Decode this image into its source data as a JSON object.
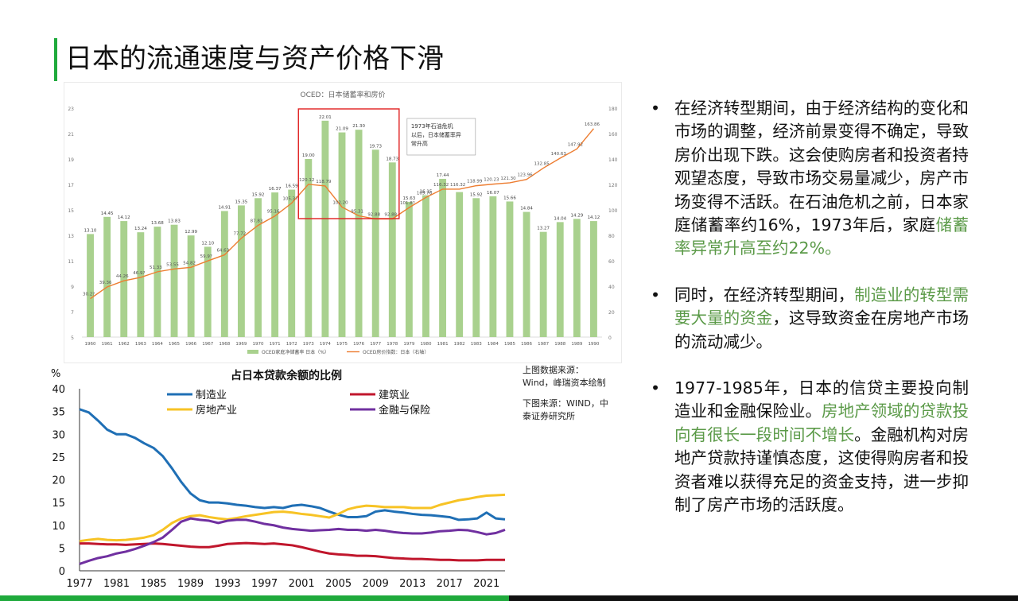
{
  "slide": {
    "title": "日本的流通速度与资产价格下滑"
  },
  "source_note": {
    "upper": "上图数据来源：Wind，峰瑞资本绘制",
    "lower": "下图来源：WIND，中泰证券研究所"
  },
  "bullets": [
    {
      "plain": "在经济转型期间，由于经济结构的变化和市场的调整，经济前景变得不确定，导致房价出现下跌。这会使购房者和投资者持观望态度，导致市场交易量减少，房产市场变得不活跃。在石油危机之前，日本家庭储蓄率约16%，1973年后，家庭",
      "highlight": "储蓄率异常升高至约22%。",
      "after": ""
    },
    {
      "plain": "同时，在经济转型期间，",
      "highlight": "制造业的转型需要大量的资金",
      "after": "，这导致资金在房地产市场的流动减少。"
    },
    {
      "plain": "1977-1985年，日本的信贷主要投向制造业和金融保险业。",
      "highlight": "房地产领域的贷款投向有很长一段时间不增长",
      "after": "。金融机构对房地产贷款持谨慎态度，这使得购房者和投资者难以获得充足的资金支持，进一步抑制了房产市场的活跃度。"
    }
  ],
  "colors": {
    "accent": "#1faa3c",
    "highlight_text": "#5b9a48",
    "bar": "#a9d18e",
    "house_line": "#ed7d31",
    "manufacturing": "#1f6fb5",
    "construction": "#c0162c",
    "real_estate": "#f7c325",
    "finance": "#7030a0",
    "annotation_box": "#e02020"
  },
  "chart_data": [
    {
      "type": "bar",
      "title": "OCED：日本储蓄率和房价",
      "categories": [
        "1960",
        "1961",
        "1962",
        "1963",
        "1964",
        "1965",
        "1966",
        "1967",
        "1968",
        "1969",
        "1970",
        "1971",
        "1972",
        "1973",
        "1974",
        "1975",
        "1976",
        "1977",
        "1978",
        "1979",
        "1980",
        "1981",
        "1982",
        "1983",
        "1984",
        "1985",
        "1986",
        "1987",
        "1988",
        "1989",
        "1990"
      ],
      "series": [
        {
          "name": "OCED家庭净储蓄率 日本（%）",
          "axis": "left",
          "values": [
            13.1,
            14.45,
            14.12,
            13.24,
            13.68,
            13.83,
            12.99,
            12.1,
            14.91,
            15.35,
            15.92,
            16.37,
            16.59,
            19.0,
            22.01,
            21.09,
            21.3,
            19.73,
            18.73,
            15.63,
            16.15,
            17.44,
            16.4,
            15.92,
            16.07,
            15.66,
            14.84,
            13.27,
            14.04,
            14.29,
            14.12
          ],
          "labels": [
            "13.10",
            "14.45",
            "14.12",
            "13.24",
            "13.68",
            "13.83",
            "12.99",
            "12.10",
            "14.91",
            "15.35",
            "15.92",
            "16.37",
            "16.59",
            "19.00",
            "22.01",
            "21.09",
            "21.30",
            "19.73",
            "18.73",
            "15.63",
            "16.15",
            "17.44",
            "",
            "15.92",
            "16.07",
            "15.66",
            "14.84",
            "13.27",
            "14.04",
            "14.29",
            "14.12"
          ]
        },
        {
          "name": "OCED房价指数：日本（右轴）",
          "axis": "right",
          "type": "line",
          "values": [
            30.2,
            39.36,
            44.26,
            46.9,
            51.33,
            53.55,
            54.82,
            59.9,
            64.63,
            77.72,
            87.83,
            95.16,
            105.3,
            120.12,
            118.79,
            102.2,
            95.31,
            92.88,
            92.88,
            101.8,
            109.76,
            116.32,
            116.32,
            118.99,
            120.23,
            121.3,
            123.96,
            132.85,
            140.63,
            147.92,
            163.86
          ],
          "labels": [
            "30.2?",
            "39.36",
            "44.26",
            "46.9?",
            "51.33",
            "53.55",
            "54.82",
            "59.9?",
            "64.63",
            "77.72",
            "87.83",
            "95.16",
            "105.3?",
            "120.12",
            "118.79",
            "102.20",
            "95.31",
            "92.88",
            "92.88",
            "101.8?",
            "109.76",
            "116.32",
            "116.32",
            "118.99",
            "120.23",
            "121.30",
            "123.96",
            "132.85",
            "140.63",
            "147.92",
            "163.86"
          ]
        }
      ],
      "left_axis": {
        "ticks": [
          "5",
          "7",
          "9",
          "11",
          "13",
          "15",
          "17",
          "19",
          "21",
          "23"
        ],
        "range": [
          5,
          23
        ]
      },
      "right_axis": {
        "ticks": [
          "0",
          "20",
          "40",
          "60",
          "80",
          "100",
          "120",
          "140",
          "160",
          "180"
        ],
        "range": [
          0,
          180
        ]
      },
      "annotation": "1973年石油危机以后，日本储蓄率异常升高",
      "legend_position": "bottom"
    },
    {
      "type": "line",
      "title": "占日本贷款余额的比例",
      "ylabel": "%",
      "ylim": [
        0,
        40
      ],
      "y_ticks": [
        "0",
        "5",
        "10",
        "15",
        "20",
        "25",
        "30",
        "35",
        "40"
      ],
      "x_ticks": [
        "1977",
        "1981",
        "1985",
        "1989",
        "1993",
        "1997",
        "2001",
        "2005",
        "2009",
        "2013",
        "2017",
        "2021"
      ],
      "x": [
        1977,
        1978,
        1979,
        1980,
        1981,
        1982,
        1983,
        1984,
        1985,
        1986,
        1987,
        1988,
        1989,
        1990,
        1991,
        1992,
        1993,
        1994,
        1995,
        1996,
        1997,
        1998,
        1999,
        2000,
        2001,
        2002,
        2003,
        2004,
        2005,
        2006,
        2007,
        2008,
        2009,
        2010,
        2011,
        2012,
        2013,
        2014,
        2015,
        2016,
        2017,
        2018,
        2019,
        2020,
        2021,
        2022,
        2023
      ],
      "series": [
        {
          "name": "制造业",
          "values": [
            35.5,
            34.8,
            33.0,
            31.0,
            30.0,
            30.0,
            29.2,
            28.0,
            27.0,
            25.2,
            22.5,
            19.5,
            17.0,
            15.5,
            15.0,
            15.0,
            14.8,
            14.5,
            14.3,
            14.0,
            13.8,
            14.0,
            13.8,
            14.3,
            14.5,
            14.2,
            13.8,
            13.0,
            12.3,
            11.8,
            11.8,
            12.0,
            13.0,
            13.3,
            13.0,
            12.8,
            12.5,
            12.3,
            12.2,
            12.0,
            11.8,
            11.2,
            11.3,
            11.5,
            12.8,
            11.5,
            11.3
          ]
        },
        {
          "name": "建筑业",
          "values": [
            6.0,
            6.0,
            5.9,
            5.8,
            5.8,
            5.7,
            5.8,
            5.9,
            6.0,
            5.9,
            5.7,
            5.5,
            5.3,
            5.2,
            5.2,
            5.5,
            5.9,
            6.0,
            6.1,
            6.0,
            5.9,
            6.0,
            5.8,
            5.6,
            5.2,
            4.7,
            4.2,
            3.8,
            3.6,
            3.5,
            3.3,
            3.3,
            3.2,
            3.0,
            2.8,
            2.7,
            2.6,
            2.6,
            2.5,
            2.4,
            2.4,
            2.3,
            2.3,
            2.3,
            2.4,
            2.4,
            2.4
          ]
        },
        {
          "name": "房地产业",
          "values": [
            6.5,
            6.8,
            7.0,
            6.8,
            6.7,
            6.8,
            7.0,
            7.3,
            7.8,
            9.0,
            10.5,
            11.5,
            12.0,
            12.2,
            11.8,
            11.5,
            11.3,
            11.6,
            12.0,
            12.3,
            12.6,
            12.9,
            13.0,
            12.8,
            12.5,
            12.3,
            12.0,
            11.7,
            12.5,
            13.5,
            14.0,
            14.3,
            14.2,
            14.0,
            14.0,
            14.0,
            13.8,
            13.8,
            13.8,
            14.5,
            15.0,
            15.5,
            15.8,
            16.2,
            16.5,
            16.6,
            16.7
          ]
        },
        {
          "name": "金融与保险",
          "values": [
            1.5,
            2.2,
            2.8,
            3.2,
            3.8,
            4.2,
            4.8,
            5.5,
            6.3,
            7.3,
            9.0,
            10.8,
            11.5,
            11.2,
            11.0,
            10.5,
            11.0,
            11.2,
            11.2,
            10.8,
            10.3,
            10.0,
            9.5,
            9.2,
            9.0,
            8.8,
            8.9,
            9.0,
            9.2,
            9.0,
            9.0,
            8.8,
            9.0,
            8.8,
            8.5,
            8.3,
            8.2,
            8.2,
            8.4,
            8.7,
            8.8,
            9.0,
            8.9,
            8.5,
            8.0,
            8.3,
            9.0
          ]
        }
      ],
      "legend_position": "top"
    }
  ]
}
